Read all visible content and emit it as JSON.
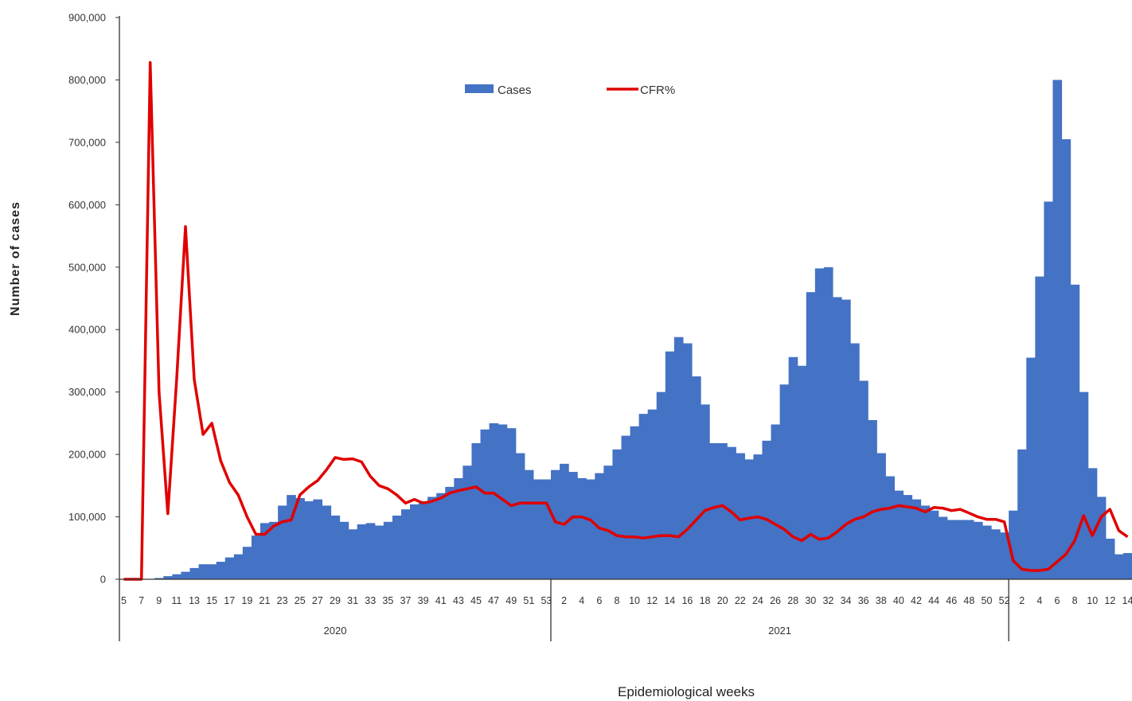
{
  "chart_data": {
    "type": "bar",
    "title": "",
    "xlabel": "Epidemiological weeks",
    "ylabel": "Number of cases",
    "ylim": [
      0,
      900000
    ],
    "yticks": [
      "0",
      "100,000",
      "200,000",
      "300,000",
      "400,000",
      "500,000",
      "600,000",
      "700,000",
      "800,000",
      "900,000"
    ],
    "legend": {
      "position": "top-center",
      "entries": [
        "Cases",
        "CFR%"
      ]
    },
    "colors": {
      "cases": "#4472C4",
      "cfr": "#E00000"
    },
    "years": [
      {
        "label": "2020",
        "weeks": [
          5,
          6,
          7,
          8,
          9,
          10,
          11,
          12,
          13,
          14,
          15,
          16,
          17,
          18,
          19,
          20,
          21,
          22,
          23,
          24,
          25,
          26,
          27,
          28,
          29,
          30,
          31,
          32,
          33,
          34,
          35,
          36,
          37,
          38,
          39,
          40,
          41,
          42,
          43,
          44,
          45,
          46,
          47,
          48,
          49,
          50,
          51,
          52,
          53
        ]
      },
      {
        "label": "2021",
        "weeks": [
          1,
          2,
          3,
          4,
          5,
          6,
          7,
          8,
          9,
          10,
          11,
          12,
          13,
          14,
          15,
          16,
          17,
          18,
          19,
          20,
          21,
          22,
          23,
          24,
          25,
          26,
          27,
          28,
          29,
          30,
          31,
          32,
          33,
          34,
          35,
          36,
          37,
          38,
          39,
          40,
          41,
          42,
          43,
          44,
          45,
          46,
          47,
          48,
          49,
          50,
          51,
          52
        ]
      },
      {
        "label": "",
        "weeks": [
          1,
          2,
          3,
          4,
          5,
          6,
          7,
          8,
          9,
          10,
          11,
          12,
          13,
          14
        ]
      }
    ],
    "series": [
      {
        "name": "Cases",
        "type": "bar",
        "values": [
          0,
          0,
          0,
          0,
          2000,
          5000,
          8000,
          12000,
          18000,
          24000,
          24000,
          28000,
          35000,
          40000,
          52000,
          70000,
          90000,
          92000,
          118000,
          135000,
          130000,
          125000,
          128000,
          118000,
          102000,
          92000,
          80000,
          88000,
          90000,
          86000,
          92000,
          102000,
          112000,
          120000,
          125000,
          132000,
          138000,
          148000,
          162000,
          182000,
          218000,
          240000,
          250000,
          248000,
          242000,
          202000,
          175000,
          160000,
          160000,
          175000,
          185000,
          172000,
          162000,
          160000,
          170000,
          182000,
          208000,
          230000,
          245000,
          265000,
          272000,
          300000,
          365000,
          388000,
          378000,
          325000,
          280000,
          218000,
          218000,
          212000,
          202000,
          192000,
          200000,
          222000,
          248000,
          312000,
          356000,
          342000,
          460000,
          498000,
          500000,
          452000,
          448000,
          378000,
          318000,
          255000,
          202000,
          165000,
          142000,
          135000,
          128000,
          118000,
          110000,
          100000,
          95000,
          95000,
          95000,
          92000,
          86000,
          80000,
          75000,
          110000,
          208000,
          355000,
          485000,
          605000,
          800000,
          705000,
          472000,
          300000,
          178000,
          132000,
          65000,
          40000,
          42000
        ]
      },
      {
        "name": "CFR%",
        "type": "line",
        "values": [
          0,
          0,
          0,
          828000,
          300000,
          105000,
          320000,
          565000,
          320000,
          232000,
          250000,
          190000,
          155000,
          135000,
          100000,
          72000,
          72000,
          85000,
          92000,
          95000,
          135000,
          148000,
          158000,
          175000,
          195000,
          192000,
          193000,
          188000,
          165000,
          150000,
          145000,
          135000,
          122000,
          128000,
          122000,
          125000,
          130000,
          138000,
          142000,
          145000,
          148000,
          138000,
          138000,
          128000,
          118000,
          122000,
          122000,
          122000,
          122000,
          92000,
          88000,
          100000,
          100000,
          95000,
          82000,
          78000,
          70000,
          68000,
          68000,
          66000,
          68000,
          70000,
          70000,
          68000,
          80000,
          95000,
          110000,
          115000,
          118000,
          108000,
          95000,
          98000,
          100000,
          96000,
          88000,
          80000,
          68000,
          62000,
          72000,
          64000,
          66000,
          76000,
          88000,
          96000,
          100000,
          108000,
          112000,
          114000,
          118000,
          116000,
          114000,
          108000,
          115000,
          114000,
          110000,
          112000,
          106000,
          100000,
          96000,
          96000,
          92000,
          30000,
          16000,
          14000,
          14000,
          16000,
          28000,
          40000,
          62000,
          102000,
          70000,
          100000,
          112000,
          78000,
          68000
        ]
      }
    ]
  }
}
